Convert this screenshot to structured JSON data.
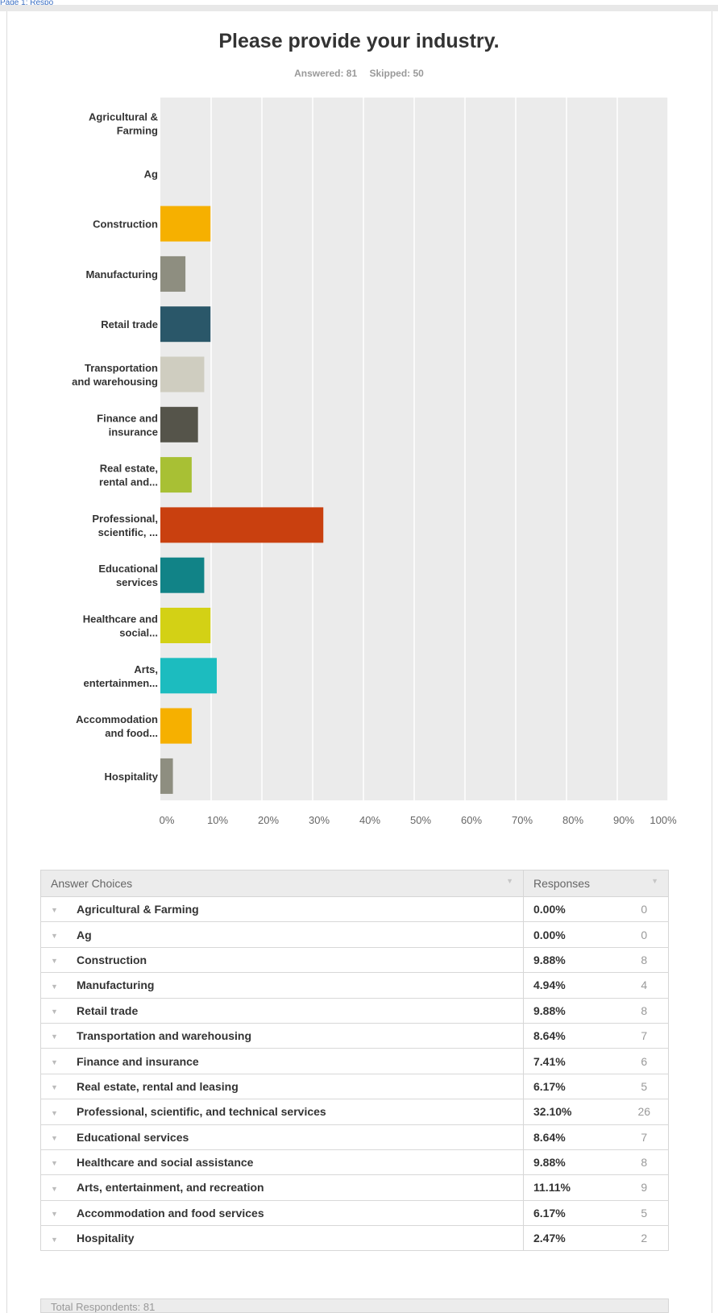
{
  "breadcrumb": "Page 1: Respo",
  "question": {
    "title": "Please provide your industry.",
    "answered": "Answered: 81",
    "skipped": "Skipped: 50"
  },
  "colors": {
    "accent_palette": [
      "#f6b000",
      "#8e8e80",
      "#2a5769",
      "#cfcdc0",
      "#55544a",
      "#a8c034",
      "#c9400f",
      "#118387",
      "#d3d115",
      "#1cbcbf",
      "#f6b000",
      "#8e8e80"
    ],
    "plot_bg": "#ebebeb",
    "gridline": "#ffffff"
  },
  "chart_data": {
    "type": "bar",
    "orientation": "horizontal",
    "title": "Please provide your industry.",
    "categories": [
      "Agricultural & Farming",
      "Ag",
      "Construction",
      "Manufacturing",
      "Retail trade",
      "Transportation and warehousing",
      "Finance and insurance",
      "Real estate, rental and...",
      "Professional, scientific, ...",
      "Educational services",
      "Healthcare and social...",
      "Arts, entertainmen...",
      "Accommodation and food...",
      "Hospitality"
    ],
    "category_label_lines": [
      [
        "Agricultural &",
        "Farming"
      ],
      [
        "Ag"
      ],
      [
        "Construction"
      ],
      [
        "Manufacturing"
      ],
      [
        "Retail trade"
      ],
      [
        "Transportation",
        "and warehousing"
      ],
      [
        "Finance and",
        "insurance"
      ],
      [
        "Real estate,",
        "rental and..."
      ],
      [
        "Professional,",
        "scientific, ..."
      ],
      [
        "Educational",
        "services"
      ],
      [
        "Healthcare and",
        "social..."
      ],
      [
        "Arts,",
        "entertainmen..."
      ],
      [
        "Accommodation",
        "and food..."
      ],
      [
        "Hospitality"
      ]
    ],
    "values": [
      0.0,
      0.0,
      9.88,
      4.94,
      9.88,
      8.64,
      7.41,
      6.17,
      32.1,
      8.64,
      9.88,
      11.11,
      6.17,
      2.47
    ],
    "xlim": [
      0,
      100
    ],
    "xticks": [
      "0%",
      "10%",
      "20%",
      "30%",
      "40%",
      "50%",
      "60%",
      "70%",
      "80%",
      "90%",
      "100%"
    ],
    "grid": true,
    "legend": "none"
  },
  "table": {
    "headers": {
      "choices": "Answer Choices",
      "responses": "Responses"
    },
    "rows": [
      {
        "choice": "Agricultural & Farming",
        "pct": "0.00%",
        "count": "0"
      },
      {
        "choice": "Ag",
        "pct": "0.00%",
        "count": "0"
      },
      {
        "choice": "Construction",
        "pct": "9.88%",
        "count": "8"
      },
      {
        "choice": "Manufacturing",
        "pct": "4.94%",
        "count": "4"
      },
      {
        "choice": "Retail trade",
        "pct": "9.88%",
        "count": "8"
      },
      {
        "choice": "Transportation and warehousing",
        "pct": "8.64%",
        "count": "7"
      },
      {
        "choice": "Finance and insurance",
        "pct": "7.41%",
        "count": "6"
      },
      {
        "choice": "Real estate, rental and leasing",
        "pct": "6.17%",
        "count": "5"
      },
      {
        "choice": "Professional, scientific, and technical services",
        "pct": "32.10%",
        "count": "26"
      },
      {
        "choice": "Educational services",
        "pct": "8.64%",
        "count": "7"
      },
      {
        "choice": "Healthcare and social assistance",
        "pct": "9.88%",
        "count": "8"
      },
      {
        "choice": "Arts, entertainment, and recreation",
        "pct": "11.11%",
        "count": "9"
      },
      {
        "choice": "Accommodation and food services",
        "pct": "6.17%",
        "count": "5"
      },
      {
        "choice": "Hospitality",
        "pct": "2.47%",
        "count": "2"
      }
    ],
    "footer": "Total Respondents: 81"
  }
}
